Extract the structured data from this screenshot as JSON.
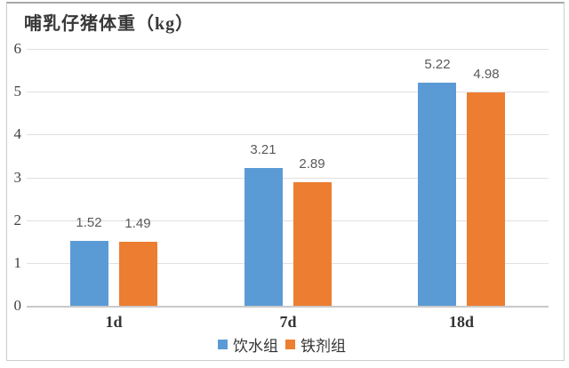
{
  "page": {
    "background": "#ffffff",
    "card_border_color": "#cdcdcd"
  },
  "chart_data": {
    "type": "bar",
    "title": "哺乳仔猪体重（kg）",
    "categories": [
      "1d",
      "7d",
      "18d"
    ],
    "series": [
      {
        "name": "饮水组",
        "color": "#5B9BD5",
        "values": [
          1.52,
          3.21,
          5.22
        ],
        "labels": [
          "1.52",
          "3.21",
          "5.22"
        ]
      },
      {
        "name": "铁剂组",
        "color": "#ED7D31",
        "values": [
          1.49,
          2.89,
          4.98
        ],
        "labels": [
          "1.49",
          "2.89",
          "4.98"
        ]
      }
    ],
    "xlabel": "",
    "ylabel": "",
    "ylim": [
      0,
      6
    ],
    "yticks": [
      0,
      1,
      2,
      3,
      4,
      5,
      6
    ],
    "ytick_labels": [
      "0",
      "1",
      "2",
      "3",
      "4",
      "5",
      "6"
    ],
    "grid": true,
    "grid_color": "#e0e0e0",
    "axis_line_color": "#c9c9c9",
    "data_label_color": "#595959",
    "legend_position": "bottom"
  }
}
